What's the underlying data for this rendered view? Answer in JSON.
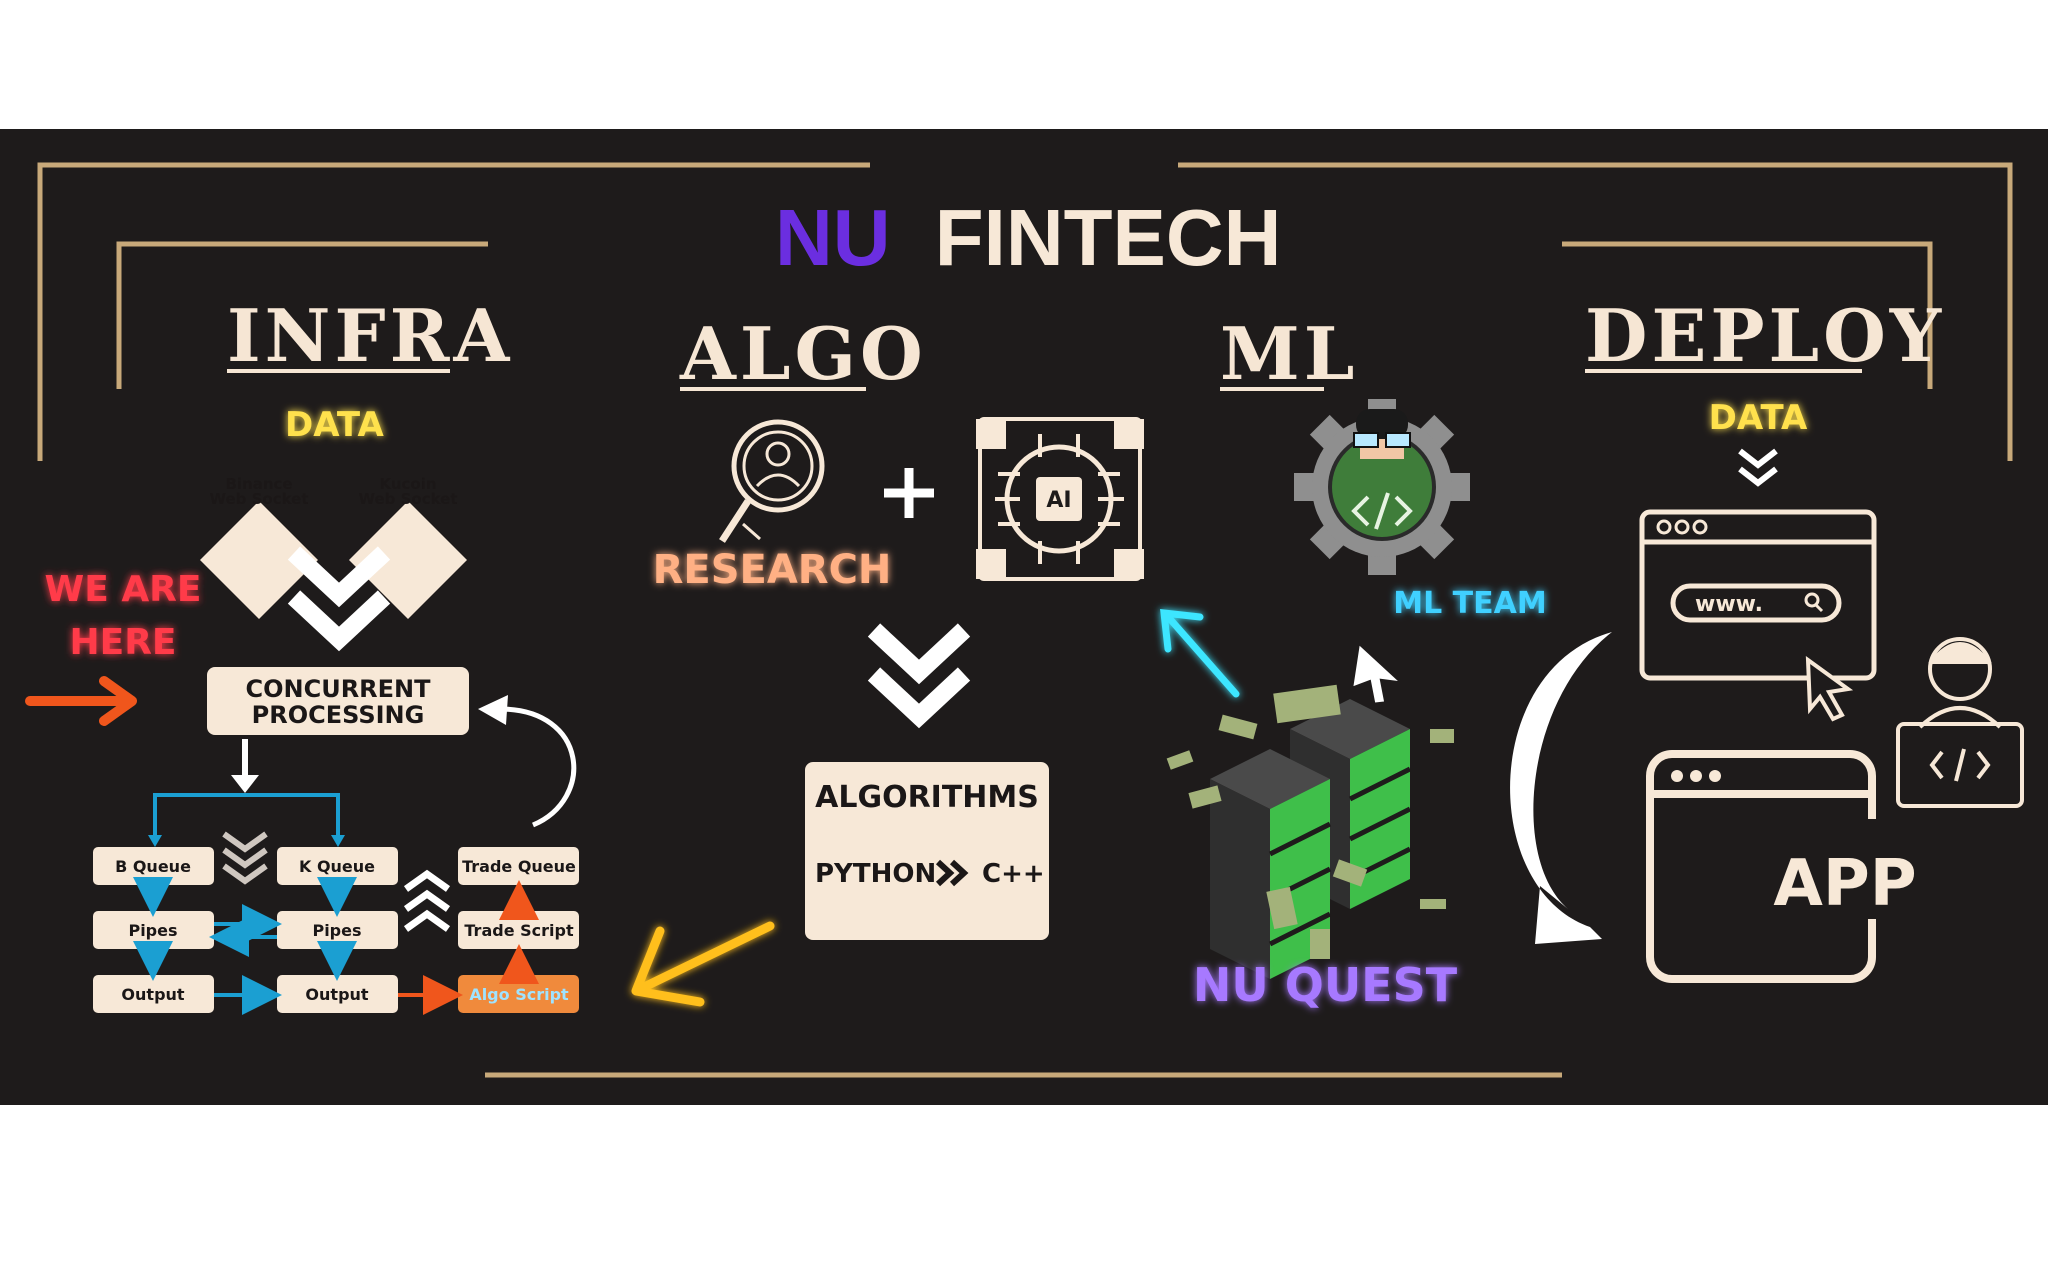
{
  "header": {
    "title_part1": "NU",
    "title_part2": "FINTECH"
  },
  "sections": {
    "infra": "INFRA",
    "algo": "ALGO",
    "ml": "ML",
    "deploy": "DEPLOY"
  },
  "infra": {
    "data_label": "DATA",
    "binance_line1": "Binance",
    "binance_line2": "Web Socket",
    "kucoin_line1": "Kucoin",
    "kucoin_line2": "Web Socket",
    "we_are_line1": "WE ARE",
    "we_are_line2": "HERE",
    "concurrent_line1": "CONCURRENT",
    "concurrent_line2": "PROCESSING",
    "b_queue": "B Queue",
    "k_queue": "K Queue",
    "trade_queue": "Trade Queue",
    "pipes_left": "Pipes",
    "pipes_right": "Pipes",
    "trade_script": "Trade Script",
    "output_left": "Output",
    "output_right": "Output",
    "algo_script": "Algo Script"
  },
  "algo": {
    "research": "RESEARCH",
    "ai_chip_label": "AI",
    "algorithms_title": "ALGORITHMS",
    "lang_from": "PYTHON",
    "lang_to": "C++"
  },
  "ml": {
    "team": "ML TEAM",
    "quest": "NU QUEST"
  },
  "deploy": {
    "data_label": "DATA",
    "url_text": "www.",
    "app_label": "APP"
  },
  "colors": {
    "background": "#1e1b1b",
    "cream": "#f7e8d7",
    "gold_frame": "#c8a97a",
    "purple_title": "#6b2ee0",
    "data_yellow": "#ffe14d",
    "neon_red": "#ff3b4a",
    "research_peach": "#ffb084",
    "ml_cyan": "#3fd0ff",
    "quest_purple": "#a779ff",
    "connector_cyan": "#1b9fd2",
    "connector_orange": "#f0561c",
    "server_green": "#3fbf4a"
  }
}
